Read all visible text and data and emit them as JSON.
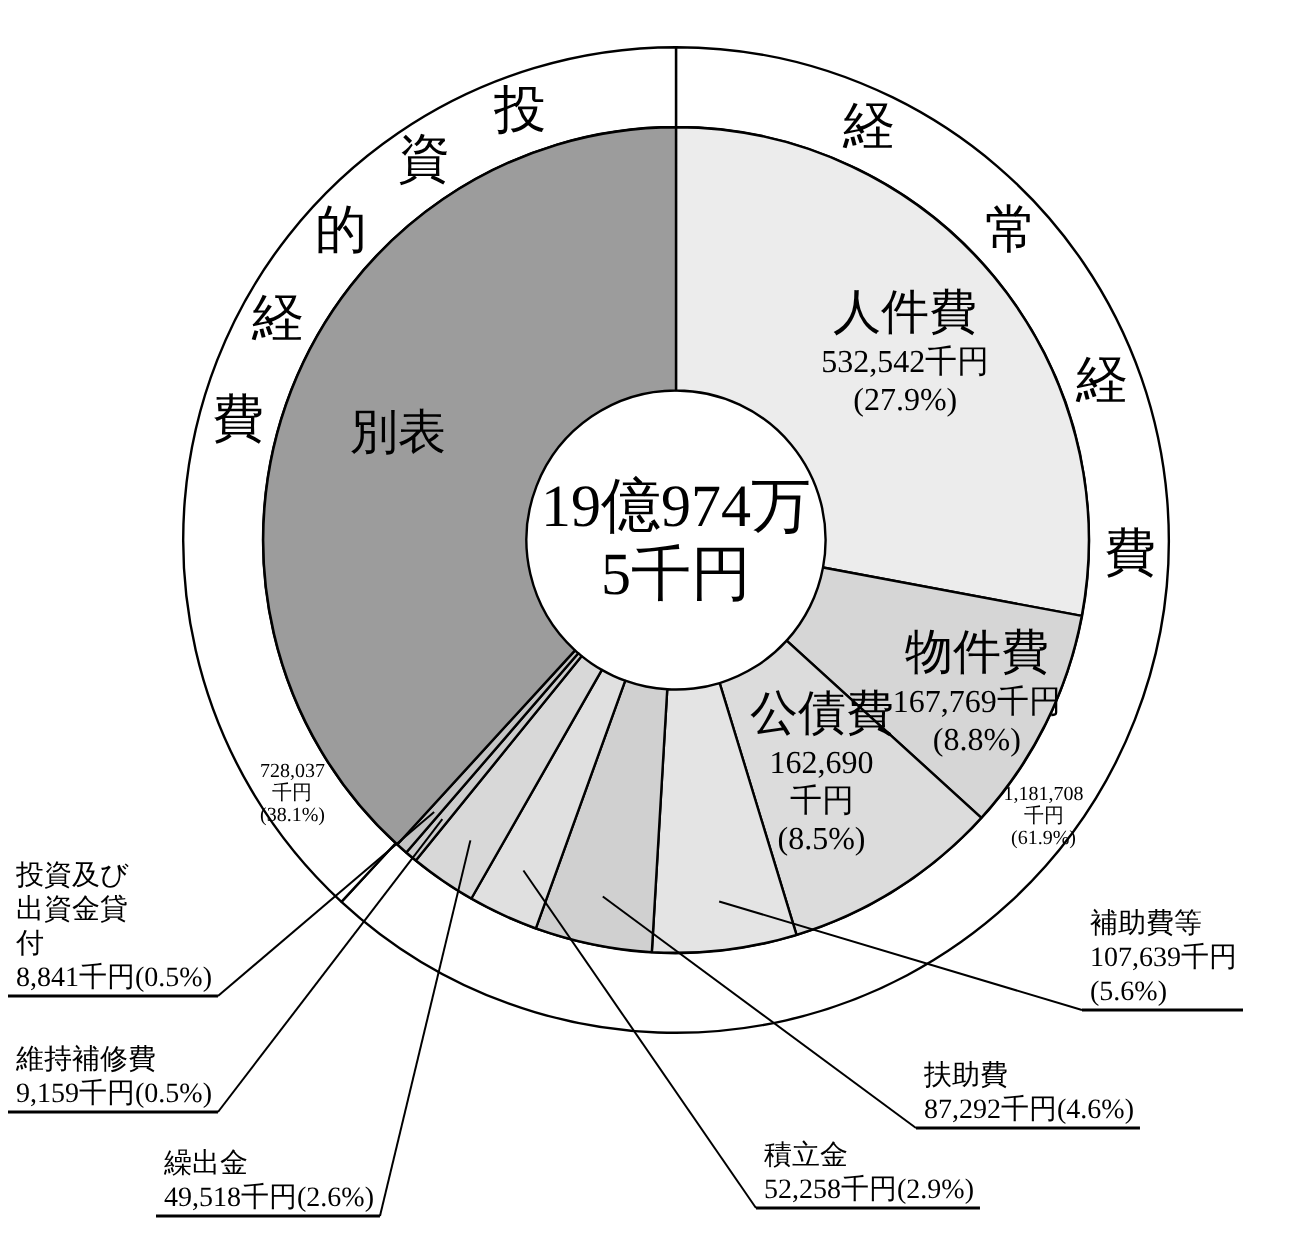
{
  "chart_data": [
    {
      "type": "donut",
      "categories": [
        "経常経費",
        "投資的経費"
      ],
      "values": [
        1181708,
        728037
      ],
      "colors": [
        "#ffffff",
        "#ffffff"
      ],
      "value_labels": [
        "1,181,708千円(61.9%)",
        "728,037千円(38.1%)"
      ],
      "legend": false
    },
    {
      "type": "donut",
      "categories": [
        "人件費",
        "物件費",
        "公債費",
        "補助費等",
        "扶助費",
        "積立金",
        "繰出金",
        "維持補修費",
        "投資及び出資金貸付",
        "別表"
      ],
      "values": [
        532542,
        167769,
        162690,
        107639,
        87292,
        52258,
        49518,
        9159,
        8841,
        728037
      ],
      "colors": [
        "#ececec",
        "#d6d6d6",
        "#dcdcdc",
        "#e4e4e4",
        "#d0d0d0",
        "#e0e0e0",
        "#d8d8d8",
        "#cccccc",
        "#c4c4c4",
        "#9c9c9c"
      ],
      "value_labels": [
        "532,542千円(27.9%)",
        "167,769千円(8.8%)",
        "162,690千円(8.5%)",
        "107,639千円(5.6%)",
        "87,292千円(4.6%)",
        "52,258千円(2.9%)",
        "49,518千円(2.6%)",
        "9,159千円(0.5%)",
        "8,841千円(0.5%)",
        null
      ],
      "annotations": [
        "19億974万\n5千円"
      ],
      "legend": false
    }
  ]
}
